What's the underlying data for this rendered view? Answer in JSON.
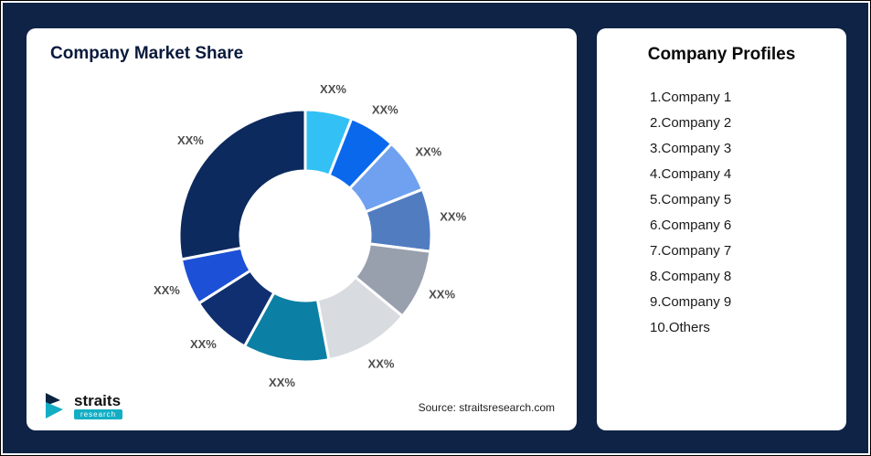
{
  "chart_card": {
    "title": "Company Market Share",
    "source": "Source: straitsresearch.com",
    "logo": {
      "name": "straits",
      "sub": "research"
    }
  },
  "profiles_card": {
    "title": "Company Profiles",
    "items": [
      "1.Company 1",
      "2.Company 2",
      "3.Company 3",
      "4.Company 4",
      "5.Company 5",
      "6.Company 6",
      "7.Company 7",
      "8.Company 8",
      "9.Company 9",
      "10.Others"
    ]
  },
  "chart_data": {
    "type": "pie",
    "subtype": "donut",
    "title": "Company Market Share",
    "categories": [
      "Company 1",
      "Company 2",
      "Company 3",
      "Company 4",
      "Company 5",
      "Company 6",
      "Company 7",
      "Company 8",
      "Company 9",
      "Others"
    ],
    "labels": [
      "XX%",
      "XX%",
      "XX%",
      "XX%",
      "XX%",
      "XX%",
      "XX%",
      "XX%",
      "XX%",
      "XX%"
    ],
    "values": [
      6,
      6,
      7,
      8,
      9,
      11,
      11,
      8,
      6,
      28
    ],
    "values_are_estimated_from_arc_sizes": true,
    "colors": [
      "#33C1F5",
      "#0A68ED",
      "#6FA1F0",
      "#517CC0",
      "#98A0AE",
      "#D8DBDF",
      "#0B7FA4",
      "#0F2F70",
      "#1C50D6",
      "#0D2A5E"
    ],
    "start_angle_deg": 0,
    "direction": "clockwise",
    "legend_position": "none",
    "label_color": "#4D4D4D",
    "separator_color": "#FFFFFF"
  },
  "colors": {
    "background": "#0E2345",
    "card": "#FFFFFF",
    "accent_teal": "#14AEC4",
    "title_navy": "#0A1A3C"
  }
}
